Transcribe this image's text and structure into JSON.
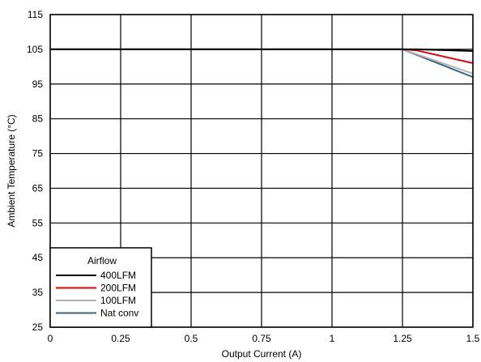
{
  "chart_data": {
    "type": "line",
    "title": "",
    "xlabel": "Output Current (A)",
    "ylabel": "Ambient Temperature (°C)",
    "xlim": [
      0,
      1.5
    ],
    "ylim": [
      25,
      115
    ],
    "x_ticks": [
      0,
      0.25,
      0.5,
      0.75,
      1,
      1.25,
      1.5
    ],
    "y_ticks": [
      25,
      35,
      45,
      55,
      65,
      75,
      85,
      95,
      105,
      115
    ],
    "grid": true,
    "legend": {
      "title": "Airflow",
      "placement": "bottom-left"
    },
    "series": [
      {
        "name": "400LFM",
        "color": "#000000",
        "x": [
          0,
          1.25,
          1.3,
          1.5
        ],
        "y": [
          105,
          105,
          105,
          104.5
        ]
      },
      {
        "name": "200LFM",
        "color": "#e8000b",
        "x": [
          0,
          1.25,
          1.3,
          1.5
        ],
        "y": [
          105,
          105,
          104.7,
          101
        ]
      },
      {
        "name": "100LFM",
        "color": "#b3b3b3",
        "x": [
          0,
          1.25,
          1.5
        ],
        "y": [
          105,
          105,
          98
        ]
      },
      {
        "name": "Nat conv",
        "color": "#3b6382",
        "x": [
          0,
          1.25,
          1.5
        ],
        "y": [
          105,
          105,
          97
        ]
      }
    ]
  }
}
